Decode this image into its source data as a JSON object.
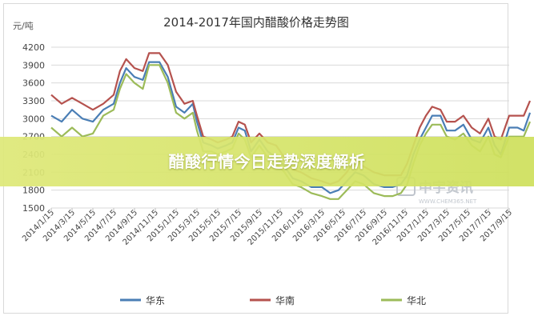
{
  "chart_data": {
    "type": "line",
    "title": "2014-2017年国内醋酸价格走势图",
    "ylabel": "元/吨",
    "ylim": [
      1500,
      4200
    ],
    "yticks": [
      4200,
      3900,
      3600,
      3300,
      3000,
      2700,
      2400,
      2100,
      1800,
      1500
    ],
    "x_tick_labels": [
      "2014/1/15",
      "2014/3/15",
      "2014/5/15",
      "2014/7/15",
      "2014/9/15",
      "2014/11/15",
      "2015/1/15",
      "2015/3/15",
      "2015/5/15",
      "2015/7/15",
      "2015/9/15",
      "2015/11/15",
      "2016/1/15",
      "2016/3/15",
      "2016/5/15",
      "2016/7/15",
      "2016/9/15",
      "2016/11/15",
      "2017/1/15",
      "2017/3/15",
      "2017/5/15",
      "2017/7/15",
      "2017/9/15"
    ],
    "legend_position": "bottom",
    "grid": true,
    "series": [
      {
        "name": "华东",
        "color": "#4a7eb5",
        "points": [
          [
            0,
            3050
          ],
          [
            0.5,
            2950
          ],
          [
            1,
            3150
          ],
          [
            1.5,
            3000
          ],
          [
            2,
            2950
          ],
          [
            2.5,
            3150
          ],
          [
            3,
            3250
          ],
          [
            3.3,
            3600
          ],
          [
            3.6,
            3850
          ],
          [
            4,
            3700
          ],
          [
            4.4,
            3650
          ],
          [
            4.7,
            3950
          ],
          [
            5.2,
            3950
          ],
          [
            5.6,
            3700
          ],
          [
            6,
            3200
          ],
          [
            6.4,
            3100
          ],
          [
            6.8,
            3250
          ],
          [
            7,
            2950
          ],
          [
            7.3,
            2600
          ],
          [
            7.7,
            2550
          ],
          [
            8,
            2500
          ],
          [
            8.4,
            2550
          ],
          [
            8.7,
            2600
          ],
          [
            9,
            2850
          ],
          [
            9.3,
            2800
          ],
          [
            9.6,
            2450
          ],
          [
            10,
            2650
          ],
          [
            10.4,
            2450
          ],
          [
            10.8,
            2350
          ],
          [
            11.2,
            2200
          ],
          [
            11.6,
            2000
          ],
          [
            12,
            1950
          ],
          [
            12.5,
            1850
          ],
          [
            13,
            1850
          ],
          [
            13.4,
            1750
          ],
          [
            13.8,
            1800
          ],
          [
            14.2,
            1950
          ],
          [
            14.6,
            2100
          ],
          [
            15,
            2050
          ],
          [
            15.5,
            1900
          ],
          [
            16,
            1850
          ],
          [
            16.4,
            1850
          ],
          [
            16.8,
            1900
          ],
          [
            17.1,
            2050
          ],
          [
            17.4,
            2400
          ],
          [
            17.7,
            2650
          ],
          [
            18,
            2850
          ],
          [
            18.3,
            3050
          ],
          [
            18.7,
            3050
          ],
          [
            19,
            2800
          ],
          [
            19.4,
            2800
          ],
          [
            19.8,
            2900
          ],
          [
            20.2,
            2650
          ],
          [
            20.6,
            2600
          ],
          [
            21,
            2850
          ],
          [
            21.3,
            2550
          ],
          [
            21.6,
            2400
          ],
          [
            22,
            2850
          ],
          [
            22.4,
            2850
          ],
          [
            22.7,
            2800
          ],
          [
            23,
            3100
          ]
        ]
      },
      {
        "name": "华南",
        "color": "#b5524e",
        "points": [
          [
            0,
            3400
          ],
          [
            0.5,
            3250
          ],
          [
            1,
            3350
          ],
          [
            1.5,
            3250
          ],
          [
            2,
            3150
          ],
          [
            2.5,
            3250
          ],
          [
            3,
            3400
          ],
          [
            3.3,
            3800
          ],
          [
            3.6,
            4000
          ],
          [
            4,
            3850
          ],
          [
            4.4,
            3800
          ],
          [
            4.7,
            4100
          ],
          [
            5.2,
            4100
          ],
          [
            5.6,
            3900
          ],
          [
            6,
            3450
          ],
          [
            6.4,
            3250
          ],
          [
            6.8,
            3300
          ],
          [
            7,
            3050
          ],
          [
            7.3,
            2700
          ],
          [
            7.7,
            2650
          ],
          [
            8,
            2600
          ],
          [
            8.4,
            2650
          ],
          [
            8.7,
            2700
          ],
          [
            9,
            2950
          ],
          [
            9.3,
            2900
          ],
          [
            9.6,
            2600
          ],
          [
            10,
            2750
          ],
          [
            10.4,
            2600
          ],
          [
            10.8,
            2550
          ],
          [
            11.2,
            2350
          ],
          [
            11.6,
            2150
          ],
          [
            12,
            2100
          ],
          [
            12.5,
            2000
          ],
          [
            13,
            1950
          ],
          [
            13.4,
            1900
          ],
          [
            13.8,
            1950
          ],
          [
            14.2,
            2100
          ],
          [
            14.6,
            2300
          ],
          [
            15,
            2200
          ],
          [
            15.5,
            2100
          ],
          [
            16,
            2050
          ],
          [
            16.4,
            2050
          ],
          [
            16.8,
            2050
          ],
          [
            17.1,
            2250
          ],
          [
            17.4,
            2550
          ],
          [
            17.7,
            2850
          ],
          [
            18,
            3050
          ],
          [
            18.3,
            3200
          ],
          [
            18.7,
            3150
          ],
          [
            19,
            2950
          ],
          [
            19.4,
            2950
          ],
          [
            19.8,
            3050
          ],
          [
            20.2,
            2850
          ],
          [
            20.6,
            2750
          ],
          [
            21,
            3000
          ],
          [
            21.3,
            2700
          ],
          [
            21.6,
            2650
          ],
          [
            22,
            3050
          ],
          [
            22.4,
            3050
          ],
          [
            22.7,
            3050
          ],
          [
            23,
            3300
          ]
        ]
      },
      {
        "name": "华北",
        "color": "#9cbb59",
        "points": [
          [
            0,
            2850
          ],
          [
            0.5,
            2700
          ],
          [
            1,
            2850
          ],
          [
            1.5,
            2700
          ],
          [
            2,
            2750
          ],
          [
            2.5,
            3050
          ],
          [
            3,
            3150
          ],
          [
            3.3,
            3500
          ],
          [
            3.6,
            3750
          ],
          [
            4,
            3600
          ],
          [
            4.4,
            3500
          ],
          [
            4.7,
            3900
          ],
          [
            5.2,
            3900
          ],
          [
            5.6,
            3600
          ],
          [
            6,
            3100
          ],
          [
            6.4,
            3000
          ],
          [
            6.8,
            3100
          ],
          [
            7,
            2800
          ],
          [
            7.3,
            2450
          ],
          [
            7.7,
            2450
          ],
          [
            8,
            2400
          ],
          [
            8.4,
            2450
          ],
          [
            8.7,
            2500
          ],
          [
            9,
            2750
          ],
          [
            9.3,
            2650
          ],
          [
            9.6,
            2350
          ],
          [
            10,
            2550
          ],
          [
            10.4,
            2350
          ],
          [
            10.8,
            2250
          ],
          [
            11.2,
            2100
          ],
          [
            11.6,
            1900
          ],
          [
            12,
            1850
          ],
          [
            12.5,
            1750
          ],
          [
            13,
            1700
          ],
          [
            13.4,
            1650
          ],
          [
            13.8,
            1650
          ],
          [
            14.2,
            1800
          ],
          [
            14.6,
            1950
          ],
          [
            15,
            1900
          ],
          [
            15.5,
            1750
          ],
          [
            16,
            1700
          ],
          [
            16.4,
            1700
          ],
          [
            16.8,
            1750
          ],
          [
            17.1,
            1900
          ],
          [
            17.4,
            2250
          ],
          [
            17.7,
            2550
          ],
          [
            18,
            2750
          ],
          [
            18.3,
            2900
          ],
          [
            18.7,
            2900
          ],
          [
            19,
            2700
          ],
          [
            19.4,
            2650
          ],
          [
            19.8,
            2750
          ],
          [
            20.2,
            2550
          ],
          [
            20.6,
            2450
          ],
          [
            21,
            2700
          ],
          [
            21.3,
            2400
          ],
          [
            21.6,
            2350
          ],
          [
            22,
            2700
          ],
          [
            22.4,
            2700
          ],
          [
            22.7,
            2700
          ],
          [
            23,
            2950
          ]
        ]
      }
    ]
  },
  "overlay": {
    "banner_text": "醋酸行情今日走势深度解析",
    "banner_color": "#d6e27a",
    "watermark_text": "中宇资讯",
    "watermark_sub": "WWW.CHEM365.NET"
  }
}
